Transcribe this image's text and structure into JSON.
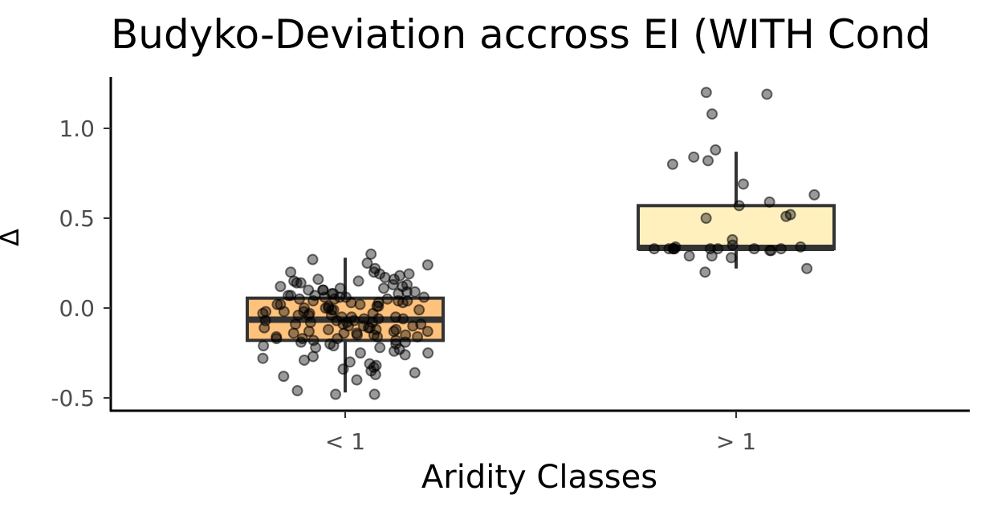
{
  "chart_data": {
    "type": "box",
    "title": "Budyko-Deviation accross EI (WITH Cond",
    "xlabel": "Aridity Classes",
    "ylabel": "Δ",
    "categories": [
      "< 1",
      "> 1"
    ],
    "ylim": [
      -0.57,
      1.28
    ],
    "yticks": [
      1.0,
      0.5,
      0.0,
      -0.5
    ],
    "ytick_labels": [
      "1.0",
      "0.5",
      "0.0",
      "-0.5"
    ],
    "grid": false,
    "legend": "none",
    "box_fill_colors": [
      "#FFC27D",
      "#FFF0BE"
    ],
    "box_stroke_color": "#333333",
    "point_color": "#000000",
    "point_opacity": 0.4,
    "boxes": [
      {
        "category": "< 1",
        "whisker_low": -0.47,
        "q1": -0.18,
        "median": -0.065,
        "q3": 0.055,
        "whisker_high": 0.28
      },
      {
        "category": "> 1",
        "whisker_low": 0.22,
        "q1": 0.33,
        "median": 0.335,
        "q3": 0.57,
        "whisker_high": 0.87
      }
    ],
    "points": [
      {
        "category": "< 1",
        "values": [
          0.3,
          0.27,
          0.25,
          0.24,
          0.22,
          0.2,
          0.2,
          0.19,
          0.19,
          0.18,
          0.17,
          0.16,
          0.16,
          0.15,
          0.15,
          0.14,
          0.14,
          0.13,
          0.13,
          0.12,
          0.12,
          0.11,
          0.11,
          0.1,
          0.1,
          0.1,
          0.09,
          0.09,
          0.08,
          0.08,
          0.08,
          0.07,
          0.07,
          0.07,
          0.06,
          0.06,
          0.06,
          0.06,
          0.05,
          0.05,
          0.05,
          0.04,
          0.04,
          0.04,
          0.03,
          0.03,
          0.03,
          0.02,
          0.02,
          0.02,
          0.01,
          0.01,
          0.01,
          0.0,
          0.0,
          0.0,
          -0.01,
          -0.01,
          -0.01,
          -0.02,
          -0.02,
          -0.02,
          -0.03,
          -0.03,
          -0.03,
          -0.04,
          -0.04,
          -0.04,
          -0.05,
          -0.05,
          -0.05,
          -0.06,
          -0.06,
          -0.06,
          -0.07,
          -0.07,
          -0.07,
          -0.08,
          -0.08,
          -0.08,
          -0.09,
          -0.09,
          -0.09,
          -0.1,
          -0.1,
          -0.1,
          -0.11,
          -0.11,
          -0.11,
          -0.12,
          -0.12,
          -0.12,
          -0.13,
          -0.13,
          -0.13,
          -0.14,
          -0.14,
          -0.14,
          -0.15,
          -0.15,
          -0.15,
          -0.16,
          -0.16,
          -0.16,
          -0.17,
          -0.17,
          -0.17,
          -0.18,
          -0.18,
          -0.19,
          -0.19,
          -0.2,
          -0.2,
          -0.21,
          -0.21,
          -0.22,
          -0.22,
          -0.23,
          -0.24,
          -0.25,
          -0.25,
          -0.26,
          -0.27,
          -0.28,
          -0.29,
          -0.3,
          -0.31,
          -0.32,
          -0.33,
          -0.34,
          -0.35,
          -0.36,
          -0.37,
          -0.38,
          -0.4,
          -0.46,
          -0.48,
          -0.48
        ]
      },
      {
        "category": "> 1",
        "values": [
          1.2,
          1.19,
          1.08,
          0.88,
          0.84,
          0.82,
          0.8,
          0.69,
          0.63,
          0.59,
          0.57,
          0.52,
          0.51,
          0.5,
          0.38,
          0.35,
          0.34,
          0.34,
          0.33,
          0.33,
          0.33,
          0.33,
          0.33,
          0.33,
          0.33,
          0.33,
          0.33,
          0.32,
          0.32,
          0.29,
          0.29,
          0.28,
          0.22,
          0.2
        ]
      }
    ]
  }
}
